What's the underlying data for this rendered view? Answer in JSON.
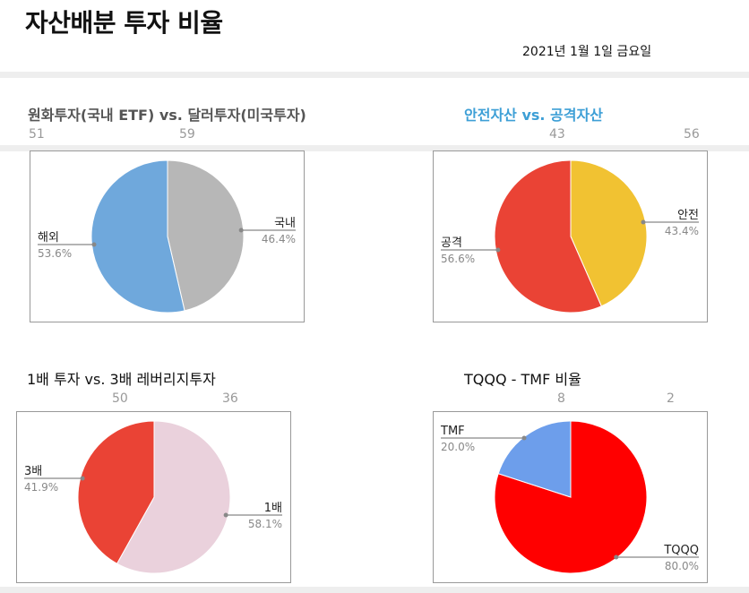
{
  "header": {
    "title": "자산배분 투자 비율",
    "date": "2021년 1월 1일 금요일"
  },
  "panels": [
    {
      "title": "원화투자(국내 ETF)  vs. 달러투자(미국투자)",
      "counts": [
        "51",
        "59"
      ]
    },
    {
      "title": "안전자산 vs. 공격자산",
      "counts": [
        "43",
        "56"
      ]
    },
    {
      "title": "1배 투자 vs. 3배 레버리지투자",
      "counts": [
        "50",
        "36"
      ]
    },
    {
      "title": "TQQQ - TMF 비율",
      "counts": [
        "8",
        "2"
      ]
    }
  ],
  "chart_data": [
    {
      "type": "pie",
      "slices": [
        {
          "label": "국내",
          "pct_text": "46.4%",
          "value": 46.4,
          "color": "#b7b7b7"
        },
        {
          "label": "해외",
          "pct_text": "53.6%",
          "value": 53.6,
          "color": "#6fa8dc"
        }
      ]
    },
    {
      "type": "pie",
      "slices": [
        {
          "label": "안전",
          "pct_text": "43.4%",
          "value": 43.4,
          "color": "#f1c232"
        },
        {
          "label": "공격",
          "pct_text": "56.6%",
          "value": 56.6,
          "color": "#ea4335"
        }
      ]
    },
    {
      "type": "pie",
      "slices": [
        {
          "label": "1배",
          "pct_text": "58.1%",
          "value": 58.1,
          "color": "#ead1dc"
        },
        {
          "label": "3배",
          "pct_text": "41.9%",
          "value": 41.9,
          "color": "#ea4335"
        }
      ]
    },
    {
      "type": "pie",
      "slices": [
        {
          "label": "TQQQ",
          "pct_text": "80.0%",
          "value": 80.0,
          "color": "#ff0000"
        },
        {
          "label": "TMF",
          "pct_text": "20.0%",
          "value": 20.0,
          "color": "#6d9eeb"
        }
      ]
    }
  ]
}
